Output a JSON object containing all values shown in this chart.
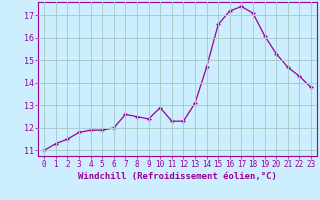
{
  "x": [
    0,
    1,
    2,
    3,
    4,
    5,
    6,
    7,
    8,
    9,
    10,
    11,
    12,
    13,
    14,
    15,
    16,
    17,
    18,
    19,
    20,
    21,
    22,
    23
  ],
  "y": [
    11.0,
    11.3,
    11.5,
    11.8,
    11.9,
    11.9,
    12.0,
    12.6,
    12.5,
    12.4,
    12.9,
    12.3,
    12.3,
    13.1,
    14.7,
    16.6,
    17.2,
    17.4,
    17.1,
    16.1,
    15.3,
    14.7,
    14.3,
    13.8
  ],
  "line_color": "#990099",
  "marker": "+",
  "bg_color": "#cceeff",
  "grid_color": "#aacccc",
  "xlabel": "Windchill (Refroidissement éolien,°C)",
  "xlabel_color": "#990099",
  "tick_color": "#990099",
  "xlim_min": -0.5,
  "xlim_max": 23.5,
  "ylim_min": 10.75,
  "ylim_max": 17.6,
  "yticks": [
    11,
    12,
    13,
    14,
    15,
    16,
    17
  ],
  "xticks": [
    0,
    1,
    2,
    3,
    4,
    5,
    6,
    7,
    8,
    9,
    10,
    11,
    12,
    13,
    14,
    15,
    16,
    17,
    18,
    19,
    20,
    21,
    22,
    23
  ],
  "tick_fontsize": 5.5,
  "xlabel_fontsize": 6.5,
  "ytick_fontsize": 6.0
}
